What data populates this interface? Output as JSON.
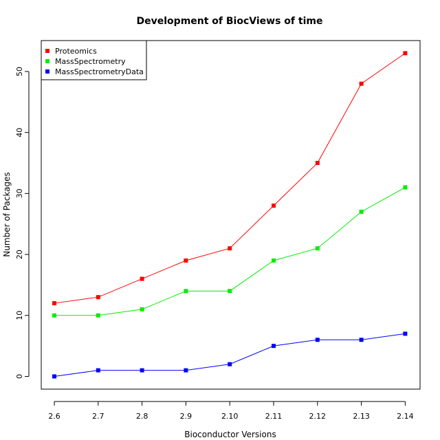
{
  "chart_data": {
    "type": "line",
    "title": "Development of BiocViews of time",
    "xlabel": "Bioconductor Versions",
    "ylabel": "Number of Packages",
    "categories": [
      "2.6",
      "2.7",
      "2.8",
      "2.9",
      "2.10",
      "2.11",
      "2.12",
      "2.13",
      "2.14"
    ],
    "yticks": [
      0,
      10,
      20,
      30,
      40,
      50
    ],
    "ylim": [
      -2,
      55
    ],
    "legend_position": "top-left",
    "series": [
      {
        "name": "Proteomics",
        "color": "#ff0000",
        "values": [
          12,
          13,
          16,
          19,
          21,
          28,
          35,
          48,
          53
        ]
      },
      {
        "name": "MassSpectrometry",
        "color": "#00ee00",
        "values": [
          10,
          10,
          11,
          14,
          14,
          19,
          21,
          27,
          31
        ]
      },
      {
        "name": "MassSpectrometryData",
        "color": "#0000ff",
        "values": [
          0,
          1,
          1,
          1,
          2,
          5,
          6,
          6,
          7
        ]
      }
    ]
  }
}
